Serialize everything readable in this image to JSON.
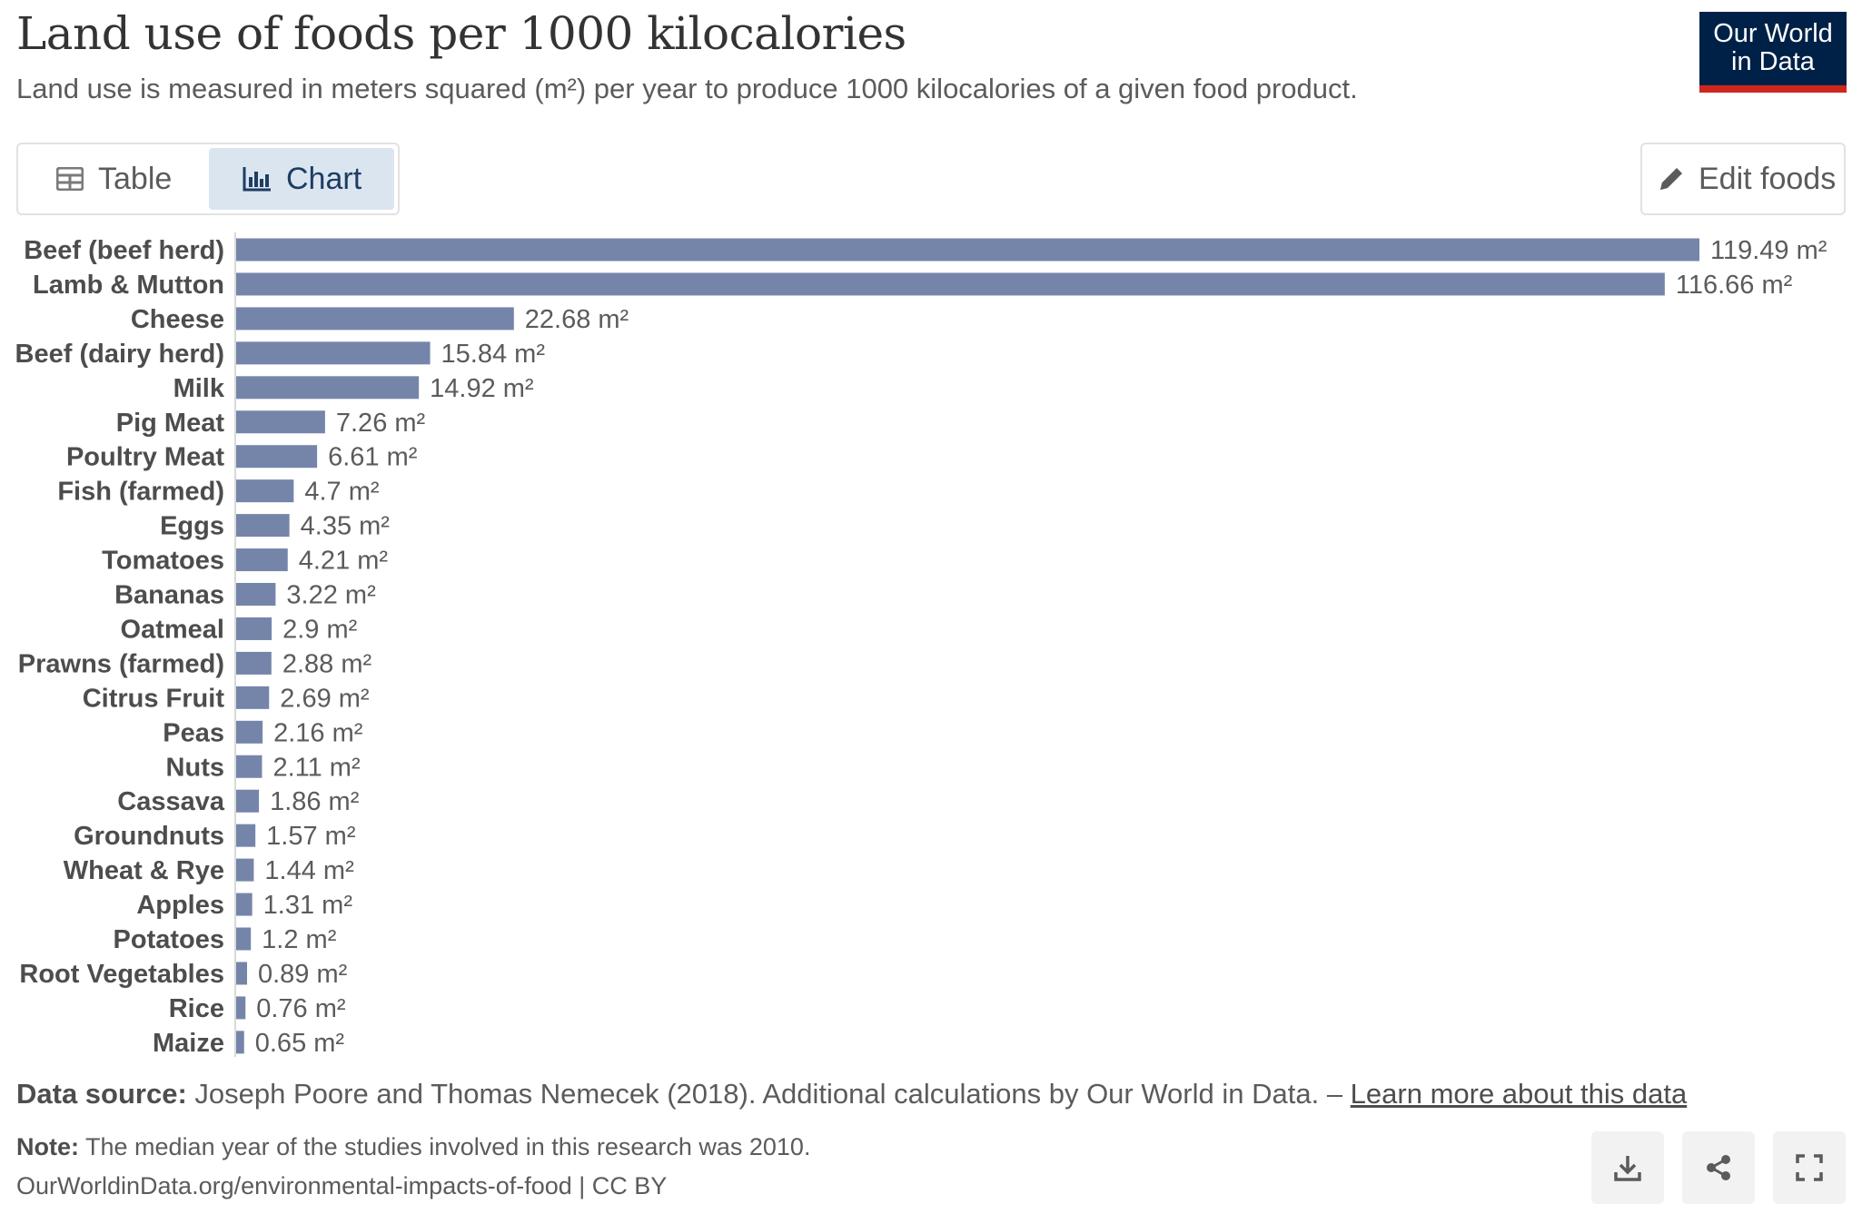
{
  "header": {
    "title": "Land use of foods per 1000 kilocalories",
    "subtitle": "Land use is measured in meters squared (m²) per year to produce 1000 kilocalories of a given food product.",
    "logo_line1": "Our World",
    "logo_line2": "in Data"
  },
  "controls": {
    "tab_table": "Table",
    "tab_chart": "Chart",
    "active_tab": "Chart",
    "edit_button": "Edit foods"
  },
  "footer": {
    "source_label": "Data source:",
    "source_text": " Joseph Poore and Thomas Nemecek (2018). Additional calculations by Our World in Data. – ",
    "source_link": "Learn more about this data",
    "note_label": "Note:",
    "note_text": " The median year of the studies involved in this research was 2010.",
    "url_text": "OurWorldinData.org/environmental-impacts-of-food | CC BY"
  },
  "icons": {
    "table": "table-icon",
    "chart": "bar-chart-icon",
    "edit": "pencil-icon",
    "download": "download-icon",
    "share": "share-icon",
    "fullscreen": "fullscreen-icon"
  },
  "chart_data": {
    "type": "bar",
    "orientation": "horizontal",
    "bar_color": "#7585aa",
    "unit_suffix": " m²",
    "categories": [
      "Beef (beef herd)",
      "Lamb & Mutton",
      "Cheese",
      "Beef (dairy herd)",
      "Milk",
      "Pig Meat",
      "Poultry Meat",
      "Fish (farmed)",
      "Eggs",
      "Tomatoes",
      "Bananas",
      "Oatmeal",
      "Prawns (farmed)",
      "Citrus Fruit",
      "Peas",
      "Nuts",
      "Cassava",
      "Groundnuts",
      "Wheat & Rye",
      "Apples",
      "Potatoes",
      "Root Vegetables",
      "Rice",
      "Maize"
    ],
    "values": [
      119.49,
      116.66,
      22.68,
      15.84,
      14.92,
      7.26,
      6.61,
      4.7,
      4.35,
      4.21,
      3.22,
      2.9,
      2.88,
      2.69,
      2.16,
      2.11,
      1.86,
      1.57,
      1.44,
      1.31,
      1.2,
      0.89,
      0.76,
      0.65
    ],
    "value_labels": [
      "119.49 m²",
      "116.66 m²",
      "22.68 m²",
      "15.84 m²",
      "14.92 m²",
      "7.26 m²",
      "6.61 m²",
      "4.7 m²",
      "4.35 m²",
      "4.21 m²",
      "3.22 m²",
      "2.9 m²",
      "2.88 m²",
      "2.69 m²",
      "2.16 m²",
      "2.11 m²",
      "1.86 m²",
      "1.57 m²",
      "1.44 m²",
      "1.31 m²",
      "1.2 m²",
      "0.89 m²",
      "0.76 m²",
      "0.65 m²"
    ],
    "xlim": [
      0,
      119.49
    ],
    "grid": false,
    "legend": "none"
  }
}
